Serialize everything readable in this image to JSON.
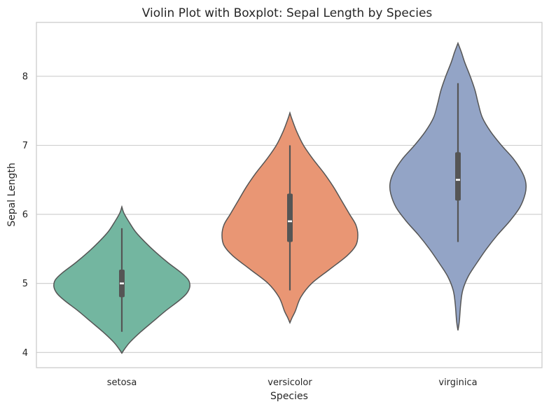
{
  "chart_data": {
    "type": "violin",
    "title": "Violin Plot with Boxplot: Sepal Length by Species",
    "xlabel": "Species",
    "ylabel": "Sepal Length",
    "ylim": [
      3.78,
      8.78
    ],
    "yticks": [
      4,
      5,
      6,
      7,
      8
    ],
    "grid": true,
    "categories": [
      "setosa",
      "versicolor",
      "virginica"
    ],
    "colors": [
      "#73b6a0",
      "#e99674",
      "#93a4c6"
    ],
    "series": [
      {
        "category": "setosa",
        "density_min": 3.99,
        "density_max": 6.11,
        "box": {
          "whisker_low": 4.3,
          "q1": 4.8,
          "median": 5.0,
          "q3": 5.2,
          "whisker_high": 5.8
        },
        "density": [
          [
            3.99,
            0.0
          ],
          [
            4.05,
            0.04
          ],
          [
            4.15,
            0.12
          ],
          [
            4.3,
            0.28
          ],
          [
            4.45,
            0.46
          ],
          [
            4.6,
            0.64
          ],
          [
            4.75,
            0.84
          ],
          [
            4.85,
            0.95
          ],
          [
            4.95,
            1.0
          ],
          [
            5.05,
            0.98
          ],
          [
            5.15,
            0.88
          ],
          [
            5.3,
            0.68
          ],
          [
            5.45,
            0.5
          ],
          [
            5.6,
            0.34
          ],
          [
            5.75,
            0.2
          ],
          [
            5.9,
            0.1
          ],
          [
            6.02,
            0.03
          ],
          [
            6.11,
            0.0
          ]
        ]
      },
      {
        "category": "versicolor",
        "density_min": 4.43,
        "density_max": 7.47,
        "box": {
          "whisker_low": 4.9,
          "q1": 5.6,
          "median": 5.9,
          "q3": 6.3,
          "whisker_high": 7.0
        },
        "density": [
          [
            4.43,
            0.0
          ],
          [
            4.5,
            0.03
          ],
          [
            4.6,
            0.08
          ],
          [
            4.8,
            0.16
          ],
          [
            5.0,
            0.32
          ],
          [
            5.2,
            0.58
          ],
          [
            5.4,
            0.84
          ],
          [
            5.55,
            0.97
          ],
          [
            5.7,
            1.0
          ],
          [
            5.85,
            0.97
          ],
          [
            6.0,
            0.88
          ],
          [
            6.2,
            0.76
          ],
          [
            6.4,
            0.64
          ],
          [
            6.6,
            0.5
          ],
          [
            6.8,
            0.34
          ],
          [
            7.0,
            0.2
          ],
          [
            7.2,
            0.1
          ],
          [
            7.38,
            0.03
          ],
          [
            7.47,
            0.0
          ]
        ]
      },
      {
        "category": "virginica",
        "density_min": 4.32,
        "density_max": 8.48,
        "box": {
          "whisker_low": 5.6,
          "q1": 6.2,
          "median": 6.5,
          "q3": 6.9,
          "whisker_high": 7.9
        },
        "density": [
          [
            4.32,
            0.0
          ],
          [
            4.45,
            0.02
          ],
          [
            4.7,
            0.04
          ],
          [
            4.9,
            0.07
          ],
          [
            5.1,
            0.15
          ],
          [
            5.3,
            0.28
          ],
          [
            5.5,
            0.42
          ],
          [
            5.7,
            0.58
          ],
          [
            5.9,
            0.76
          ],
          [
            6.1,
            0.91
          ],
          [
            6.3,
            0.99
          ],
          [
            6.45,
            1.0
          ],
          [
            6.6,
            0.95
          ],
          [
            6.8,
            0.82
          ],
          [
            7.0,
            0.64
          ],
          [
            7.2,
            0.48
          ],
          [
            7.4,
            0.36
          ],
          [
            7.6,
            0.3
          ],
          [
            7.8,
            0.25
          ],
          [
            8.0,
            0.18
          ],
          [
            8.2,
            0.1
          ],
          [
            8.35,
            0.05
          ],
          [
            8.48,
            0.0
          ]
        ]
      }
    ]
  }
}
